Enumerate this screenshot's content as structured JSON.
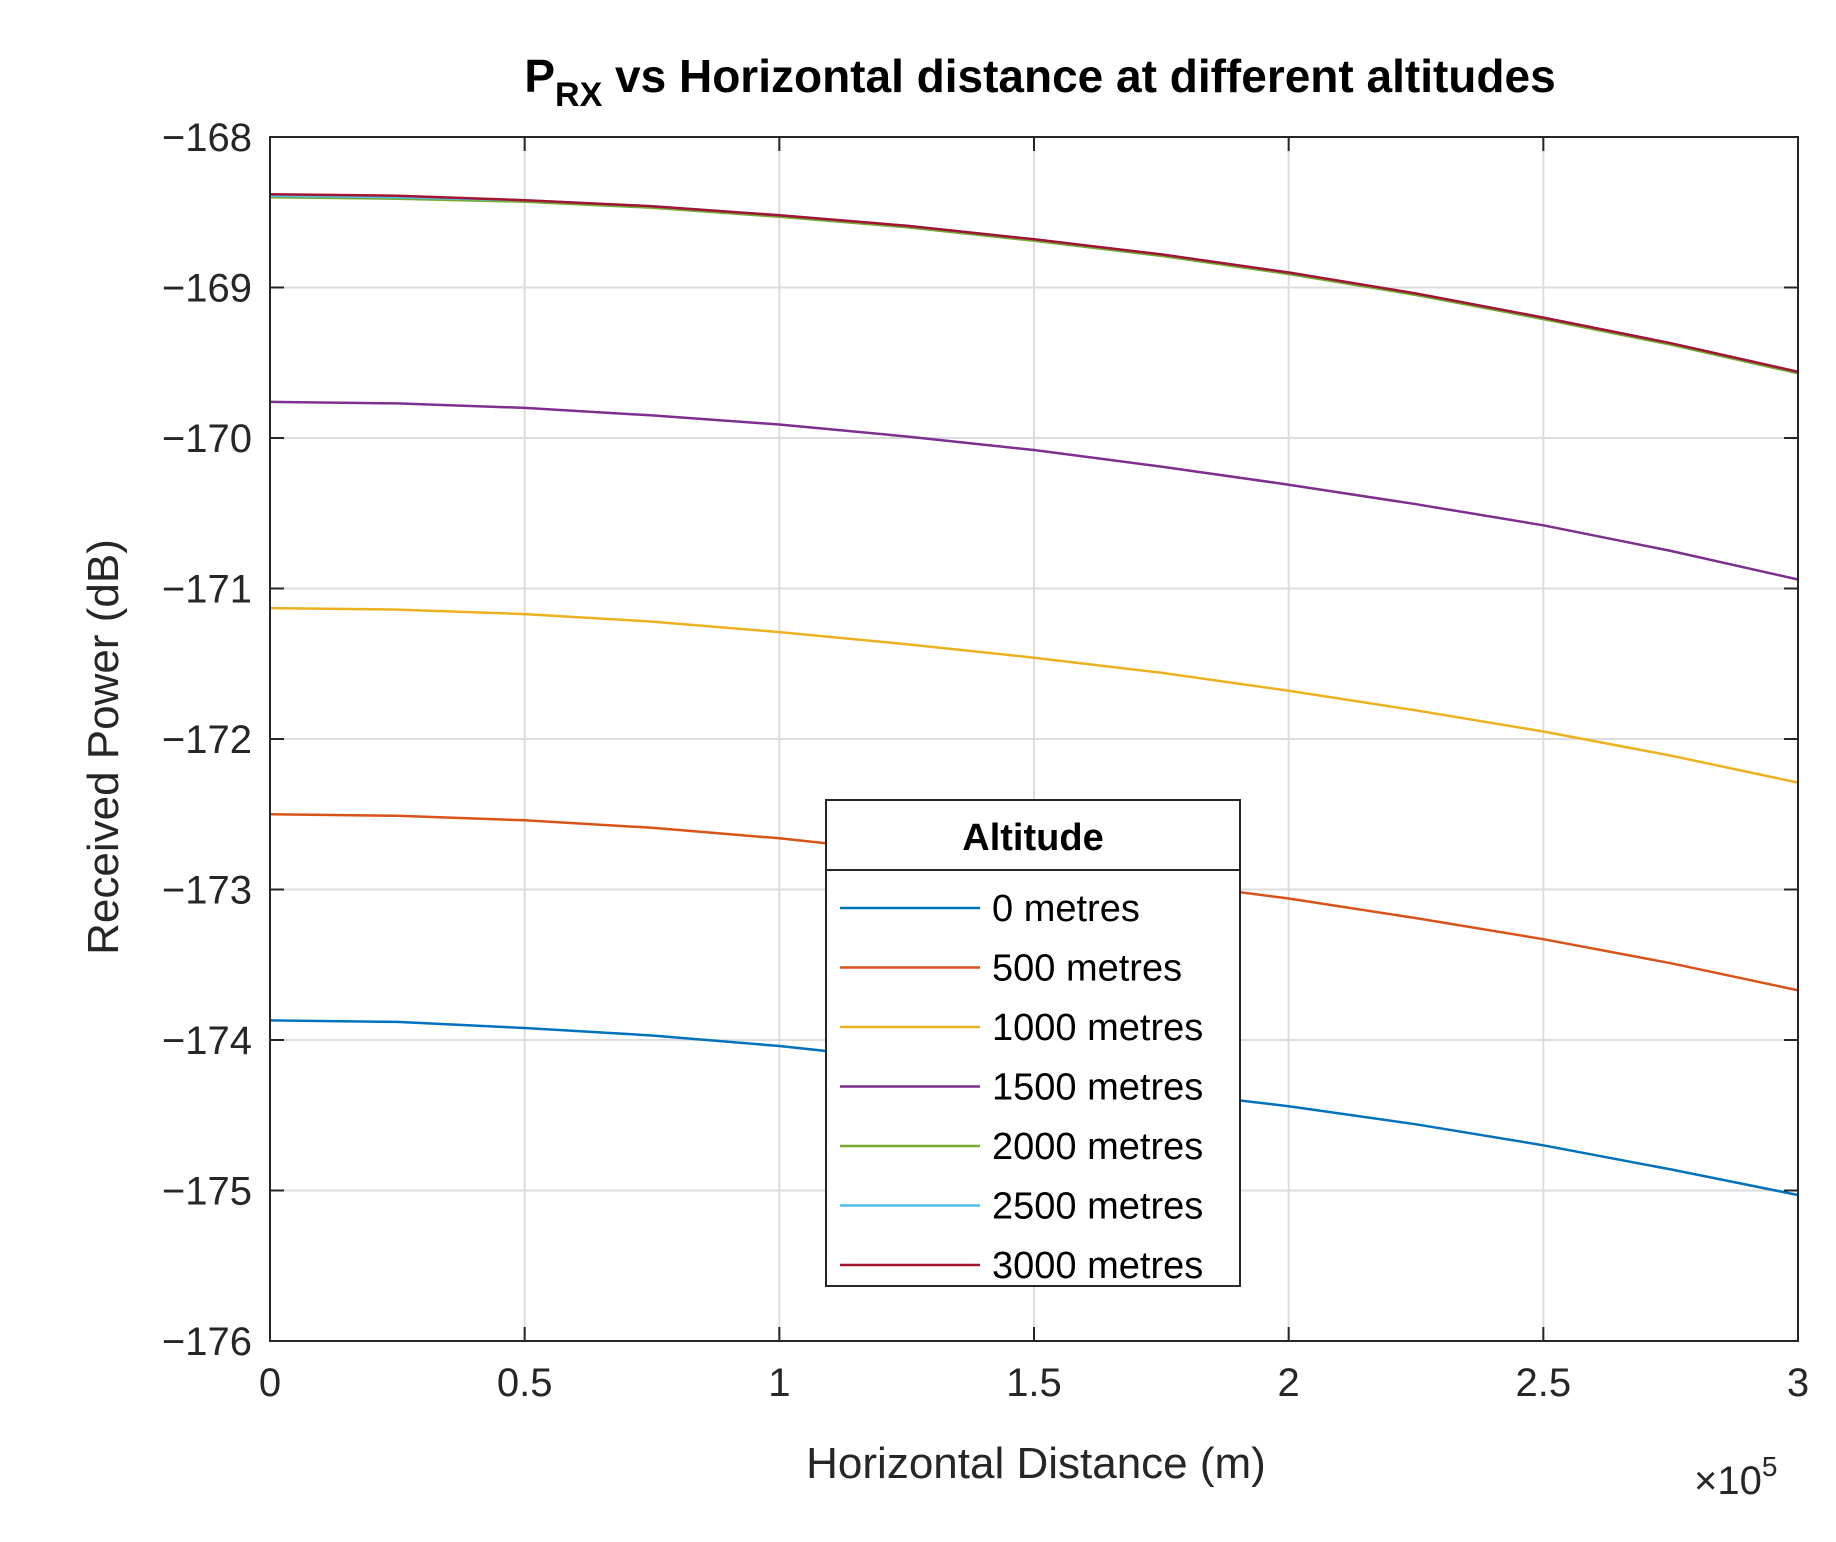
{
  "chart_data": {
    "type": "line",
    "title": {
      "main": "P",
      "subscript": "RX",
      "rest": " vs Horizontal distance at different altitudes"
    },
    "xlabel": "Horizontal Distance (m)",
    "ylabel": "Received Power (dB)",
    "x_exponent": {
      "base": "×10",
      "power": "5"
    },
    "xlim": [
      0,
      300000
    ],
    "ylim": [
      -176,
      -168
    ],
    "x_ticks": [
      0,
      50000,
      100000,
      150000,
      200000,
      250000,
      300000
    ],
    "x_tick_labels": [
      "0",
      "0.5",
      "1",
      "1.5",
      "2",
      "2.5",
      "3"
    ],
    "y_ticks": [
      -176,
      -175,
      -174,
      -173,
      -172,
      -171,
      -170,
      -169,
      -168
    ],
    "y_tick_labels": [
      "−176",
      "−175",
      "−174",
      "−173",
      "−172",
      "−171",
      "−170",
      "−169",
      "−168"
    ],
    "grid": true,
    "legend": {
      "title": "Altitude",
      "placement": "center"
    },
    "x": [
      0,
      25000,
      50000,
      75000,
      100000,
      125000,
      150000,
      175000,
      200000,
      225000,
      250000,
      275000,
      300000
    ],
    "series": [
      {
        "name": "0 metres",
        "color": "#0072BD",
        "values": [
          -173.87,
          -173.88,
          -173.92,
          -173.97,
          -174.04,
          -174.13,
          -174.23,
          -174.34,
          -174.44,
          -174.56,
          -174.7,
          -174.86,
          -175.03
        ]
      },
      {
        "name": "500 metres",
        "color": "#D95319",
        "values": [
          -172.5,
          -172.51,
          -172.54,
          -172.59,
          -172.66,
          -172.75,
          -172.85,
          -172.95,
          -173.06,
          -173.19,
          -173.33,
          -173.49,
          -173.67
        ]
      },
      {
        "name": "1000 metres",
        "color": "#EDB120",
        "values": [
          -171.13,
          -171.14,
          -171.17,
          -171.22,
          -171.29,
          -171.37,
          -171.46,
          -171.56,
          -171.68,
          -171.81,
          -171.95,
          -172.11,
          -172.29
        ]
      },
      {
        "name": "1500 metres",
        "color": "#7E2F8E",
        "values": [
          -169.76,
          -169.77,
          -169.8,
          -169.85,
          -169.91,
          -169.99,
          -170.08,
          -170.19,
          -170.31,
          -170.44,
          -170.58,
          -170.75,
          -170.94
        ]
      },
      {
        "name": "2000 metres",
        "color": "#77AC30",
        "values": [
          -168.4,
          -168.41,
          -168.43,
          -168.47,
          -168.53,
          -168.6,
          -168.69,
          -168.79,
          -168.91,
          -169.05,
          -169.21,
          -169.38,
          -169.57
        ]
      },
      {
        "name": "2500 metres",
        "color": "#4DBEEE",
        "values": [
          -168.39,
          -168.4,
          -168.42,
          -168.46,
          -168.52,
          -168.59,
          -168.68,
          -168.78,
          -168.9,
          -169.04,
          -169.2,
          -169.37,
          -169.56
        ]
      },
      {
        "name": "3000 metres",
        "color": "#A2142F",
        "values": [
          -168.38,
          -168.39,
          -168.42,
          -168.46,
          -168.52,
          -168.59,
          -168.68,
          -168.78,
          -168.9,
          -169.04,
          -169.2,
          -169.37,
          -169.56
        ]
      }
    ]
  }
}
